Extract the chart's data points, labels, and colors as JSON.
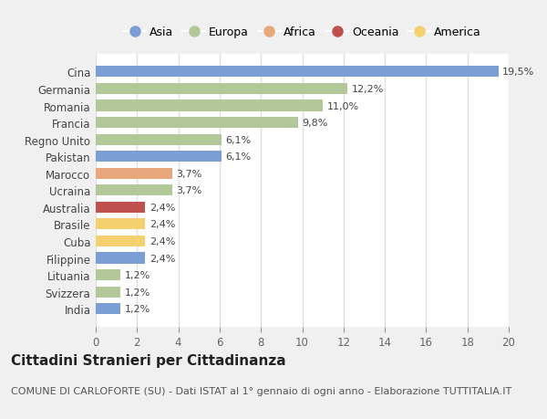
{
  "categories": [
    "India",
    "Svizzera",
    "Lituania",
    "Filippine",
    "Cuba",
    "Brasile",
    "Australia",
    "Ucraina",
    "Marocco",
    "Pakistan",
    "Regno Unito",
    "Francia",
    "Romania",
    "Germania",
    "Cina"
  ],
  "values": [
    1.2,
    1.2,
    1.2,
    2.4,
    2.4,
    2.4,
    2.4,
    3.7,
    3.7,
    6.1,
    6.1,
    9.8,
    11.0,
    12.2,
    19.5
  ],
  "continents": [
    "Asia",
    "Europa",
    "Europa",
    "Asia",
    "America",
    "America",
    "Oceania",
    "Europa",
    "Africa",
    "Asia",
    "Europa",
    "Europa",
    "Europa",
    "Europa",
    "Asia"
  ],
  "colors": {
    "Asia": "#7b9fd4",
    "Europa": "#b2c899",
    "Africa": "#e8a87c",
    "Oceania": "#c0504d",
    "America": "#f5d06e"
  },
  "labels": [
    "1,2%",
    "1,2%",
    "1,2%",
    "2,4%",
    "2,4%",
    "2,4%",
    "2,4%",
    "3,7%",
    "3,7%",
    "6,1%",
    "6,1%",
    "9,8%",
    "11,0%",
    "12,2%",
    "19,5%"
  ],
  "legend_order": [
    "Asia",
    "Europa",
    "Africa",
    "Oceania",
    "America"
  ],
  "xlim": [
    0,
    20
  ],
  "xticks": [
    0,
    2,
    4,
    6,
    8,
    10,
    12,
    14,
    16,
    18,
    20
  ],
  "title": "Cittadini Stranieri per Cittadinanza",
  "subtitle": "COMUNE DI CARLOFORTE (SU) - Dati ISTAT al 1° gennaio di ogni anno - Elaborazione TUTTITALIA.IT",
  "fig_background": "#f0f0f0",
  "plot_background": "#ffffff",
  "bar_height": 0.65,
  "grid_color": "#e0e0e0",
  "title_fontsize": 11,
  "subtitle_fontsize": 8,
  "label_fontsize": 8,
  "tick_fontsize": 8.5,
  "legend_fontsize": 9
}
